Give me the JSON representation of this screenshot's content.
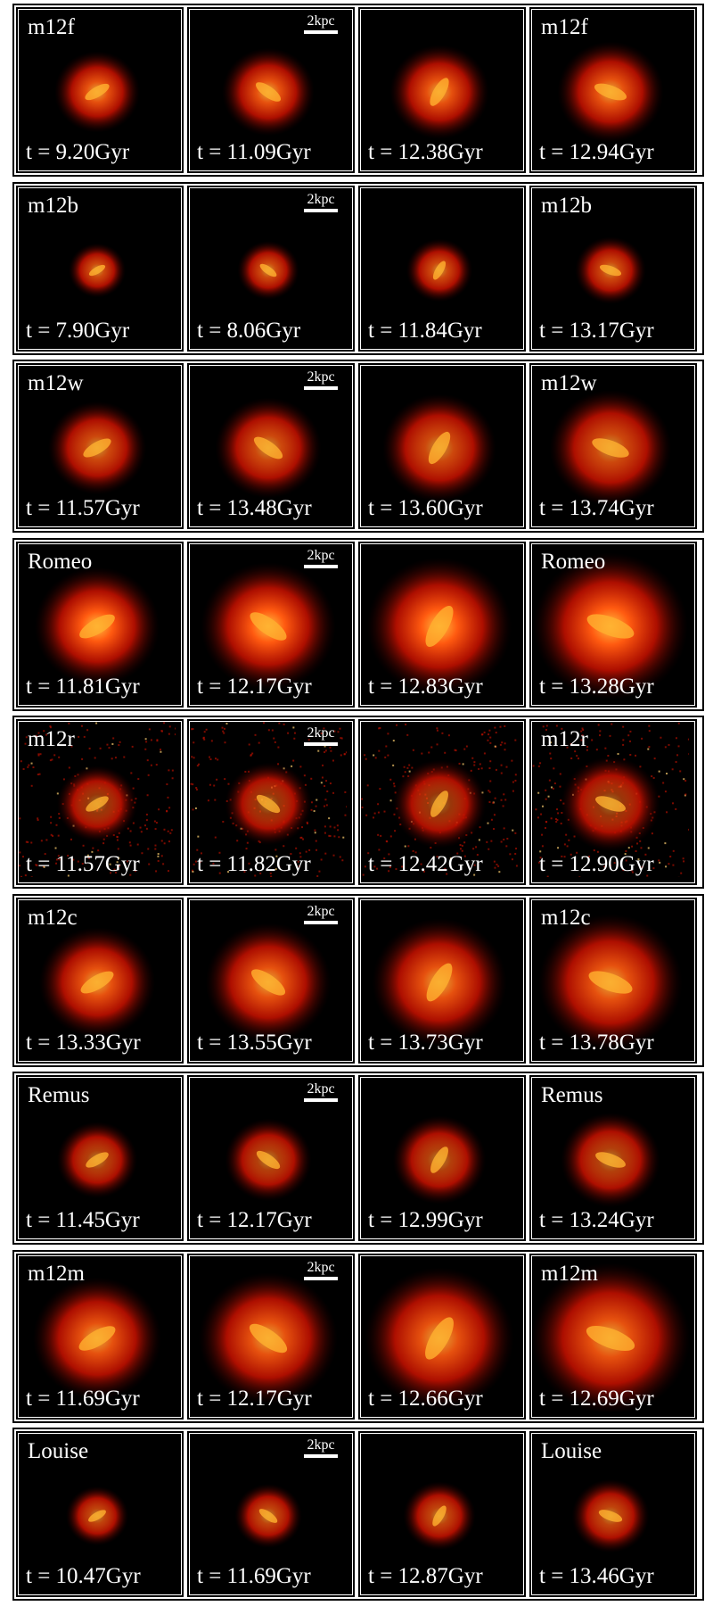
{
  "scale_bar": "2kpc",
  "rows": [
    {
      "name": "m12f",
      "panels": [
        {
          "time": "t = 9.20Gyr"
        },
        {
          "time": "t = 11.09Gyr"
        },
        {
          "time": "t = 12.38Gyr"
        },
        {
          "time": "t = 12.94Gyr"
        }
      ]
    },
    {
      "name": "m12b",
      "panels": [
        {
          "time": "t = 7.90Gyr"
        },
        {
          "time": "t = 8.06Gyr"
        },
        {
          "time": "t = 11.84Gyr"
        },
        {
          "time": "t = 13.17Gyr"
        }
      ]
    },
    {
      "name": "m12w",
      "panels": [
        {
          "time": "t = 11.57Gyr"
        },
        {
          "time": "t = 13.48Gyr"
        },
        {
          "time": "t = 13.60Gyr"
        },
        {
          "time": "t = 13.74Gyr"
        }
      ]
    },
    {
      "name": "Romeo",
      "panels": [
        {
          "time": "t = 11.81Gyr"
        },
        {
          "time": "t = 12.17Gyr"
        },
        {
          "time": "t = 12.83Gyr"
        },
        {
          "time": "t = 13.28Gyr"
        }
      ]
    },
    {
      "name": "m12r",
      "panels": [
        {
          "time": "t = 11.57Gyr"
        },
        {
          "time": "t = 11.82Gyr"
        },
        {
          "time": "t = 12.42Gyr"
        },
        {
          "time": "t = 12.90Gyr"
        }
      ]
    },
    {
      "name": "m12c",
      "panels": [
        {
          "time": "t = 13.33Gyr"
        },
        {
          "time": "t = 13.55Gyr"
        },
        {
          "time": "t = 13.73Gyr"
        },
        {
          "time": "t = 13.78Gyr"
        }
      ]
    },
    {
      "name": "Remus",
      "panels": [
        {
          "time": "t = 11.45Gyr"
        },
        {
          "time": "t = 12.17Gyr"
        },
        {
          "time": "t = 12.99Gyr"
        },
        {
          "time": "t = 13.24Gyr"
        }
      ]
    },
    {
      "name": "m12m",
      "panels": [
        {
          "time": "t = 11.69Gyr"
        },
        {
          "time": "t = 12.17Gyr"
        },
        {
          "time": "t = 12.66Gyr"
        },
        {
          "time": "t = 12.69Gyr"
        }
      ]
    },
    {
      "name": "Louise",
      "panels": [
        {
          "time": "t = 10.47Gyr"
        },
        {
          "time": "t = 11.69Gyr"
        },
        {
          "time": "t = 12.87Gyr"
        },
        {
          "time": "t = 13.46Gyr"
        }
      ]
    }
  ]
}
